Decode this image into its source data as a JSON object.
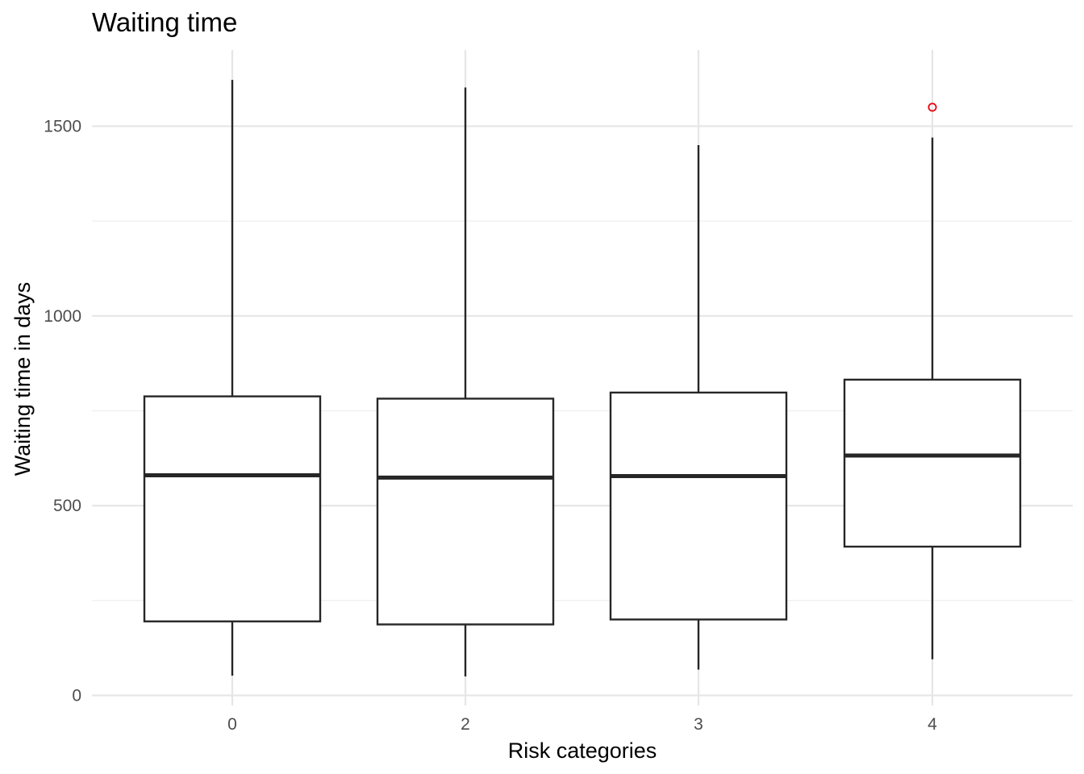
{
  "chart_data": {
    "type": "boxplot",
    "title": "Waiting time",
    "xlabel": "Risk categories",
    "ylabel": "Waiting time in days",
    "categories": [
      "0",
      "2",
      "3",
      "4"
    ],
    "boxes": [
      {
        "category": "0",
        "whisker_low": 52,
        "q1": 195,
        "median": 580,
        "q3": 788,
        "whisker_high": 1622,
        "outliers": []
      },
      {
        "category": "2",
        "whisker_low": 50,
        "q1": 187,
        "median": 574,
        "q3": 782,
        "whisker_high": 1602,
        "outliers": []
      },
      {
        "category": "3",
        "whisker_low": 68,
        "q1": 200,
        "median": 578,
        "q3": 798,
        "whisker_high": 1450,
        "outliers": []
      },
      {
        "category": "4",
        "whisker_low": 95,
        "q1": 392,
        "median": 632,
        "q3": 832,
        "whisker_high": 1470,
        "outliers": [
          1550
        ]
      }
    ],
    "yticks": [
      0,
      500,
      1000,
      1500
    ],
    "ylim": [
      -50,
      1675
    ],
    "grid": true,
    "outlier_color": "#e8000b",
    "box_color": "#262626"
  }
}
